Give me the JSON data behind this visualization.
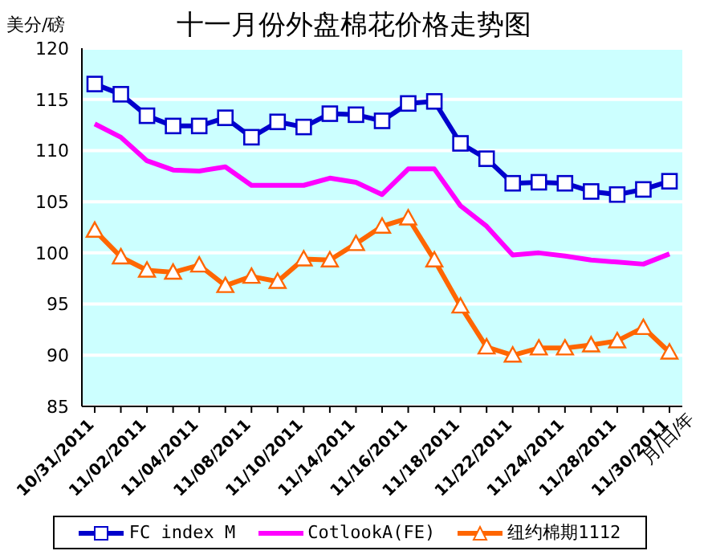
{
  "chart_data": {
    "type": "line",
    "title": "十一月份外盘棉花价格走势图",
    "ylabel": "美分/磅",
    "xlabel": "月/日/年",
    "categories": [
      "10/31/2011",
      null,
      "11/02/2011",
      null,
      "11/04/2011",
      null,
      "11/08/2011",
      null,
      "11/10/2011",
      null,
      "11/14/2011",
      null,
      "11/16/2011",
      null,
      "11/18/2011",
      null,
      "11/22/2011",
      null,
      "11/24/2011",
      null,
      "11/28/2011",
      null,
      "11/30/2011"
    ],
    "series": [
      {
        "name": "FC index M",
        "color": "#0000cc",
        "marker": "square",
        "values": [
          116.5,
          115.5,
          113.4,
          112.4,
          112.4,
          113.2,
          111.3,
          112.8,
          112.3,
          113.6,
          113.5,
          112.9,
          114.6,
          114.8,
          110.7,
          109.2,
          106.8,
          106.9,
          106.8,
          106.0,
          105.7,
          106.2,
          107.0
        ]
      },
      {
        "name": "CotlookA(FE)",
        "color": "#ff00ff",
        "marker": "none",
        "values": [
          112.6,
          111.3,
          109.0,
          108.1,
          108.0,
          108.4,
          106.6,
          106.6,
          106.6,
          107.3,
          106.9,
          105.7,
          108.2,
          108.2,
          104.6,
          102.6,
          99.8,
          100.0,
          99.7,
          99.3,
          99.1,
          98.9,
          99.9
        ]
      },
      {
        "name": "纽约棉期1112",
        "color": "#ff6600",
        "marker": "triangle",
        "values": [
          102.2,
          99.6,
          98.3,
          98.1,
          98.8,
          96.8,
          97.7,
          97.2,
          99.4,
          99.3,
          100.9,
          102.6,
          103.4,
          99.3,
          94.8,
          90.8,
          90.0,
          90.7,
          90.7,
          91.0,
          91.4,
          92.7,
          90.3
        ]
      }
    ],
    "ylim": [
      85,
      120
    ],
    "yticks": [
      85,
      90,
      95,
      100,
      105,
      110,
      115,
      120
    ],
    "grid": "y",
    "legend": "bottom"
  }
}
